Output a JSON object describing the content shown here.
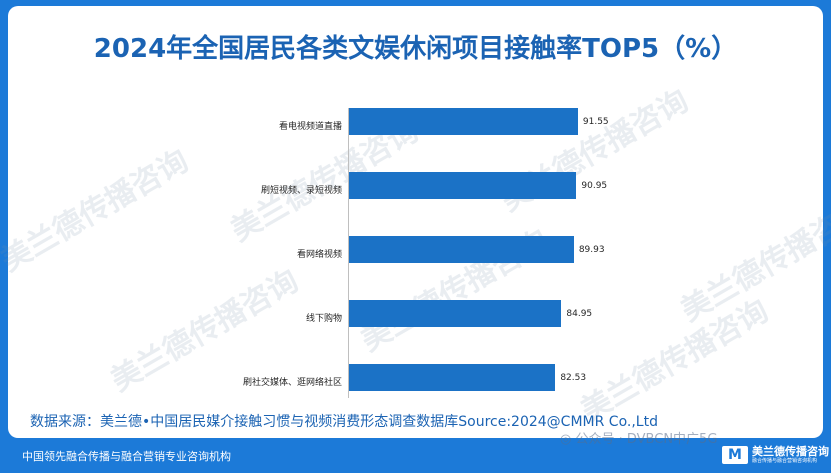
{
  "title": "2024年全国居民各类文娱休闲项目接触率TOP5（%）",
  "source": "数据来源：美兰德•中国居民媒介接触习惯与视频消费形态调查数据库Source:2024@CMMR Co.,Ltd",
  "footer": "中国领先融合传播与融合营销专业咨询机构",
  "wechat": "公众号 · DVBCN中广5G",
  "brand": {
    "logo": "M",
    "name": "美兰德传播咨询",
    "sub": "融合传播与融合营销咨询机构"
  },
  "watermark_text": "美兰德传播咨询",
  "colors": {
    "frame": "#1c7ad8",
    "bar": "#1b72c6",
    "title": "#1b63b3"
  },
  "chart_data": {
    "type": "bar",
    "orientation": "horizontal",
    "title": "2024年全国居民各类文娱休闲项目接触率TOP5（%）",
    "categories": [
      "看电视频道直播",
      "刷短视频、录短视频",
      "看网络视频",
      "线下购物",
      "刷社交媒体、逛网络社区"
    ],
    "values": [
      91.55,
      90.95,
      89.93,
      84.95,
      82.53
    ],
    "value_labels": [
      "91.55",
      "90.95",
      "89.93",
      "84.95",
      "82.53"
    ],
    "xlim": [
      0,
      100
    ],
    "grid": false,
    "legend": "none"
  }
}
